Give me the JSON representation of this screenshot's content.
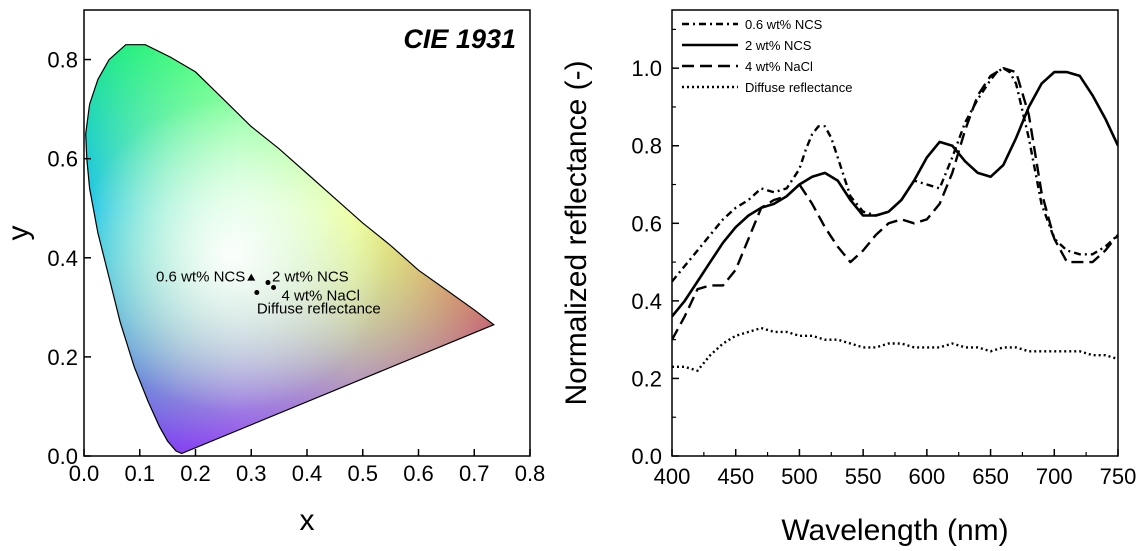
{
  "chart_data": [
    {
      "type": "scatter",
      "title": "CIE 1931",
      "xlabel": "x",
      "ylabel": "y",
      "xlim": [
        0.0,
        0.8
      ],
      "ylim": [
        0.0,
        0.9
      ],
      "xticks": [
        "0.0",
        "0.1",
        "0.2",
        "0.3",
        "0.4",
        "0.5",
        "0.6",
        "0.7",
        "0.8"
      ],
      "yticks": [
        "0.0",
        "0.2",
        "0.4",
        "0.6",
        "0.8"
      ],
      "points": [
        {
          "label": "0.6 wt% NCS",
          "x": 0.3,
          "y": 0.36,
          "marker": "triangle"
        },
        {
          "label": "2 wt% NCS",
          "x": 0.33,
          "y": 0.35,
          "marker": "dot"
        },
        {
          "label": "4 wt% NaCl",
          "x": 0.34,
          "y": 0.34,
          "marker": "dot"
        },
        {
          "label": "Diffuse reflectance",
          "x": 0.31,
          "y": 0.33,
          "marker": "dot"
        }
      ],
      "locus": [
        [
          0.175,
          0.005
        ],
        [
          0.165,
          0.01
        ],
        [
          0.15,
          0.03
        ],
        [
          0.135,
          0.06
        ],
        [
          0.115,
          0.11
        ],
        [
          0.09,
          0.18
        ],
        [
          0.065,
          0.27
        ],
        [
          0.045,
          0.36
        ],
        [
          0.025,
          0.45
        ],
        [
          0.01,
          0.54
        ],
        [
          0.005,
          0.6
        ],
        [
          0.003,
          0.65
        ],
        [
          0.01,
          0.71
        ],
        [
          0.025,
          0.76
        ],
        [
          0.045,
          0.8
        ],
        [
          0.075,
          0.83
        ],
        [
          0.11,
          0.83
        ],
        [
          0.155,
          0.805
        ],
        [
          0.2,
          0.775
        ],
        [
          0.25,
          0.72
        ],
        [
          0.3,
          0.665
        ],
        [
          0.35,
          0.62
        ],
        [
          0.4,
          0.57
        ],
        [
          0.45,
          0.52
        ],
        [
          0.5,
          0.47
        ],
        [
          0.55,
          0.425
        ],
        [
          0.6,
          0.375
        ],
        [
          0.65,
          0.335
        ],
        [
          0.7,
          0.295
        ],
        [
          0.735,
          0.265
        ]
      ]
    },
    {
      "type": "line",
      "xlabel": "Wavelength (nm)",
      "ylabel": "Normalized reflectance (-)",
      "xlim": [
        400,
        750
      ],
      "ylim": [
        0.0,
        1.15
      ],
      "xticks": [
        "400",
        "450",
        "500",
        "550",
        "600",
        "650",
        "700",
        "750"
      ],
      "yticks": [
        "0.0",
        "0.2",
        "0.4",
        "0.6",
        "0.8",
        "1.0"
      ],
      "legend_position": "top-left",
      "series": [
        {
          "name": "0.6 wt% NCS",
          "style": "dashdot",
          "x": [
            400,
            410,
            420,
            430,
            440,
            450,
            460,
            470,
            480,
            490,
            500,
            505,
            510,
            515,
            520,
            525,
            530,
            540,
            550,
            560,
            570,
            580,
            590,
            600,
            610,
            620,
            630,
            640,
            650,
            655,
            660,
            665,
            670,
            680,
            690,
            700,
            710,
            720,
            730,
            740,
            750
          ],
          "y": [
            0.45,
            0.49,
            0.53,
            0.57,
            0.61,
            0.64,
            0.66,
            0.69,
            0.68,
            0.69,
            0.74,
            0.79,
            0.83,
            0.85,
            0.85,
            0.82,
            0.77,
            0.67,
            0.63,
            0.62,
            0.63,
            0.66,
            0.71,
            0.7,
            0.69,
            0.77,
            0.86,
            0.92,
            0.97,
            0.99,
            1.0,
            0.99,
            0.96,
            0.82,
            0.65,
            0.56,
            0.53,
            0.52,
            0.52,
            0.54,
            0.57
          ]
        },
        {
          "name": "2 wt% NCS",
          "style": "solid",
          "x": [
            400,
            410,
            420,
            430,
            440,
            450,
            460,
            470,
            480,
            490,
            500,
            510,
            520,
            530,
            540,
            550,
            560,
            570,
            580,
            590,
            600,
            610,
            620,
            630,
            640,
            650,
            660,
            670,
            680,
            690,
            700,
            710,
            720,
            730,
            740,
            750
          ],
          "y": [
            0.36,
            0.4,
            0.45,
            0.5,
            0.55,
            0.59,
            0.62,
            0.64,
            0.65,
            0.67,
            0.7,
            0.72,
            0.73,
            0.71,
            0.66,
            0.62,
            0.62,
            0.63,
            0.66,
            0.71,
            0.77,
            0.81,
            0.8,
            0.76,
            0.73,
            0.72,
            0.75,
            0.82,
            0.9,
            0.96,
            0.99,
            0.99,
            0.98,
            0.93,
            0.87,
            0.8
          ]
        },
        {
          "name": "4 wt% NaCl",
          "style": "dash",
          "x": [
            400,
            410,
            420,
            430,
            440,
            450,
            460,
            470,
            480,
            490,
            500,
            510,
            520,
            530,
            540,
            550,
            560,
            570,
            580,
            590,
            600,
            610,
            620,
            630,
            640,
            650,
            660,
            670,
            680,
            690,
            700,
            710,
            720,
            730,
            740,
            750
          ],
          "y": [
            0.3,
            0.36,
            0.43,
            0.44,
            0.44,
            0.48,
            0.56,
            0.64,
            0.66,
            0.67,
            0.7,
            0.65,
            0.59,
            0.54,
            0.5,
            0.53,
            0.57,
            0.6,
            0.61,
            0.6,
            0.61,
            0.65,
            0.73,
            0.84,
            0.93,
            0.98,
            1.0,
            0.99,
            0.88,
            0.68,
            0.56,
            0.5,
            0.5,
            0.5,
            0.53,
            0.57
          ]
        },
        {
          "name": "Diffuse reflectance",
          "style": "dot",
          "x": [
            400,
            410,
            420,
            430,
            440,
            450,
            460,
            470,
            480,
            490,
            500,
            510,
            520,
            530,
            540,
            550,
            560,
            570,
            580,
            590,
            600,
            610,
            620,
            630,
            640,
            650,
            660,
            670,
            680,
            690,
            700,
            710,
            720,
            730,
            740,
            750
          ],
          "y": [
            0.23,
            0.23,
            0.22,
            0.26,
            0.29,
            0.31,
            0.32,
            0.33,
            0.32,
            0.32,
            0.31,
            0.31,
            0.3,
            0.3,
            0.29,
            0.28,
            0.28,
            0.29,
            0.29,
            0.28,
            0.28,
            0.28,
            0.29,
            0.28,
            0.28,
            0.27,
            0.28,
            0.28,
            0.27,
            0.27,
            0.27,
            0.27,
            0.27,
            0.26,
            0.26,
            0.25
          ]
        }
      ]
    }
  ]
}
